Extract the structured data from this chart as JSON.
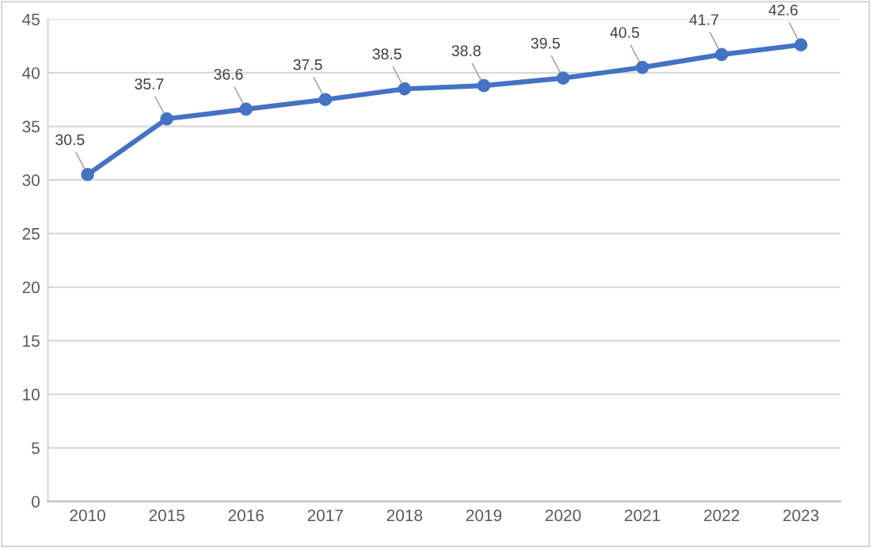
{
  "chart_data": {
    "type": "line",
    "categories": [
      "2010",
      "2015",
      "2016",
      "2017",
      "2018",
      "2019",
      "2020",
      "2021",
      "2022",
      "2023"
    ],
    "values": [
      30.5,
      35.7,
      36.6,
      37.5,
      38.5,
      38.8,
      39.5,
      40.5,
      41.7,
      42.6
    ],
    "color": "#4472c4",
    "marker": "circle",
    "line_style": "solid",
    "ylim": [
      0,
      45
    ],
    "yticks": [
      0,
      5,
      10,
      15,
      20,
      25,
      30,
      35,
      40,
      45
    ],
    "grid": "y",
    "data_labels": true
  }
}
